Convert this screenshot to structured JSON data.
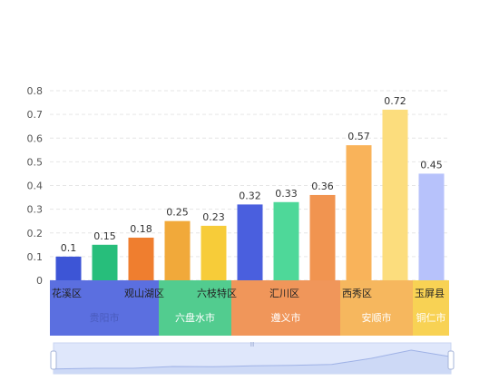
{
  "chart_data": {
    "type": "bar",
    "categories": [
      "花溪区",
      "",
      "观山湖区",
      "",
      "六枝特区",
      "",
      "汇川区",
      "",
      "西秀区",
      "",
      "玉屏县"
    ],
    "values": [
      0.1,
      0.15,
      0.18,
      0.25,
      0.23,
      0.32,
      0.33,
      0.36,
      0.57,
      0.72,
      0.45
    ],
    "bar_colors": [
      "#3d55d6",
      "#27be7b",
      "#ef7e2f",
      "#f1a93a",
      "#f7cc39",
      "#4a5fde",
      "#4ed899",
      "#f19450",
      "#f9b35a",
      "#fcdd7d",
      "#b7c2fb"
    ],
    "groups": [
      {
        "label": "贵阳市",
        "count": 3,
        "color": "#5b6fe0",
        "text_color": "#4a5bbd"
      },
      {
        "label": "六盘水市",
        "count": 2,
        "color": "#52cc8f",
        "text_color": "#ffffff"
      },
      {
        "label": "遵义市",
        "count": 3,
        "color": "#f0965a",
        "text_color": "#ffffff"
      },
      {
        "label": "安顺市",
        "count": 2,
        "color": "#f6b75e",
        "text_color": "#ffffff"
      },
      {
        "label": "铜仁市",
        "count": 1,
        "color": "#f8d254",
        "text_color": "#ffffff"
      }
    ],
    "ylim": [
      0,
      0.8
    ],
    "yticks": [
      0,
      0.1,
      0.2,
      0.3,
      0.4,
      0.5,
      0.6,
      0.7,
      0.8
    ],
    "grid": true,
    "title": "",
    "xlabel": "",
    "ylabel": ""
  },
  "slider": {
    "thumb_label": "Ⅲ",
    "trend": [
      0.1,
      0.12,
      0.12,
      0.18,
      0.17,
      0.2,
      0.22,
      0.25,
      0.45,
      0.72,
      0.5
    ],
    "fill_color": "#dfe7fb",
    "line_color": "#9fb2e6"
  }
}
